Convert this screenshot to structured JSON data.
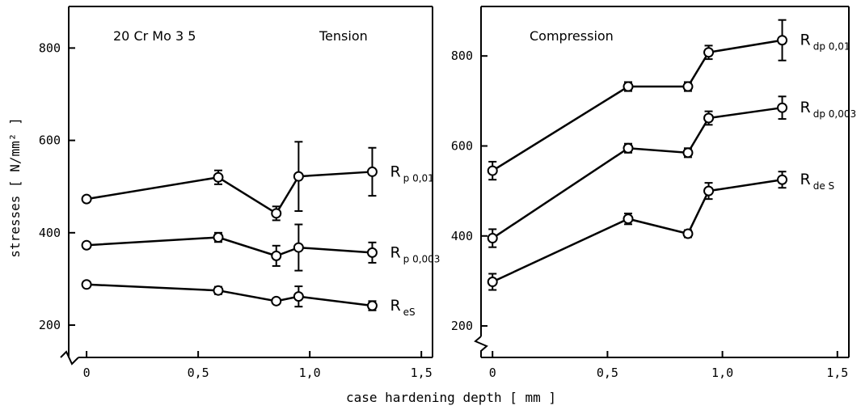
{
  "figure": {
    "xlabel": "case hardening depth  [ mm ]",
    "ylabel": "stresses  [ N/mm² ]"
  },
  "chart_data": [
    {
      "type": "line",
      "panel_label": "20 Cr Mo 3  5",
      "panel_title": "Tension",
      "xlim": [
        -0.08,
        1.55
      ],
      "ylim": [
        130,
        890
      ],
      "xticks": [
        "0",
        "0,5",
        "1,0",
        "1,5"
      ],
      "xtick_values": [
        0,
        0.5,
        1.0,
        1.5
      ],
      "yticks": [
        200,
        400,
        600,
        800
      ],
      "x": [
        0,
        0.59,
        0.85,
        0.95,
        1.28
      ],
      "series": [
        {
          "label_main": "R",
          "label_sub": "p 0,01",
          "values": [
            473,
            520,
            442,
            522,
            532
          ],
          "err": [
            0,
            15,
            15,
            75,
            52
          ]
        },
        {
          "label_main": "R",
          "label_sub": "p 0,003",
          "values": [
            373,
            390,
            350,
            368,
            357
          ],
          "err": [
            0,
            10,
            22,
            50,
            22
          ]
        },
        {
          "label_main": "R",
          "label_sub": "eS",
          "values": [
            288,
            275,
            252,
            262,
            242
          ],
          "err": [
            0,
            8,
            0,
            22,
            10
          ]
        }
      ]
    },
    {
      "type": "line",
      "panel_title": "Compression",
      "xlim": [
        -0.05,
        1.55
      ],
      "ylim": [
        130,
        910
      ],
      "xticks": [
        "0",
        "0,5",
        "1,0",
        "1,5"
      ],
      "xtick_values": [
        0,
        0.5,
        1.0,
        1.5
      ],
      "yticks": [
        200,
        400,
        600,
        800
      ],
      "x": [
        0,
        0.59,
        0.85,
        0.94,
        1.26
      ],
      "series": [
        {
          "label_main": "R",
          "label_sub": "dp 0,01",
          "values": [
            545,
            732,
            732,
            808,
            835
          ],
          "err": [
            20,
            10,
            10,
            15,
            45
          ]
        },
        {
          "label_main": "R",
          "label_sub": "dp 0,003",
          "values": [
            395,
            595,
            585,
            662,
            685
          ],
          "err": [
            20,
            10,
            10,
            15,
            25
          ]
        },
        {
          "label_main": "R",
          "label_sub": "de S",
          "values": [
            298,
            438,
            405,
            500,
            525
          ],
          "err": [
            18,
            12,
            8,
            18,
            18
          ]
        }
      ]
    }
  ]
}
